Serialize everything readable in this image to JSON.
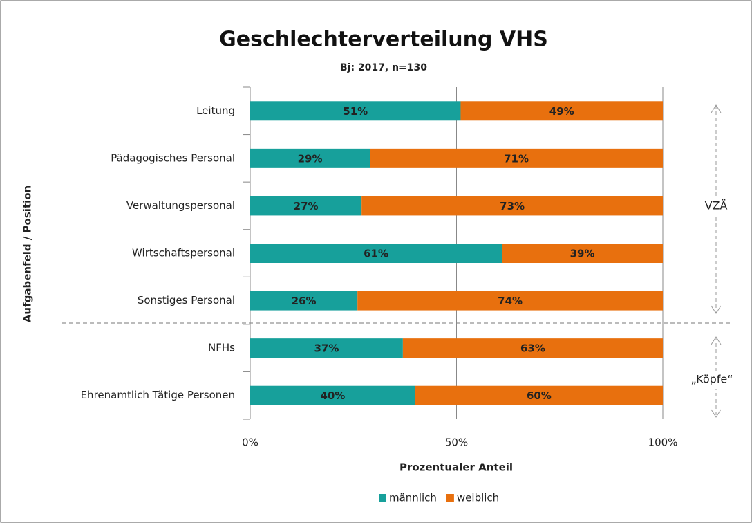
{
  "chart_data": {
    "type": "stacked-barh",
    "title": "Geschlechterverteilung VHS",
    "subtitle": "Bj:  2017, n=130",
    "xlabel": "Prozentualer Anteil",
    "ylabel": "Aufgabenfeld  / Position",
    "categories": [
      "Leitung",
      "Pädagogisches Personal",
      "Verwaltungspersonal",
      "Wirtschaftspersonal",
      "Sonstiges Personal",
      "NFHs",
      "Ehrenamtlich Tätige Personen"
    ],
    "series": [
      {
        "name": "männlich",
        "color": "#17a09b",
        "values": [
          51,
          29,
          27,
          61,
          26,
          37,
          40
        ],
        "value_labels": [
          "51%",
          "29%",
          "27%",
          "61%",
          "26%",
          "37%",
          "40%"
        ]
      },
      {
        "name": "weiblich",
        "color": "#e8700e",
        "values": [
          49,
          71,
          73,
          39,
          74,
          63,
          60
        ],
        "value_labels": [
          "49%",
          "71%",
          "73%",
          "39%",
          "74%",
          "63%",
          "60%"
        ]
      }
    ],
    "xlim": [
      0,
      100
    ],
    "xticks": [
      {
        "value": 0,
        "label": "0%"
      },
      {
        "value": 50,
        "label": "50%"
      },
      {
        "value": 100,
        "label": "100%"
      }
    ],
    "grid": true,
    "legend": "bottom",
    "annotations": [
      "VZÄ",
      "„Köpfe“"
    ]
  }
}
